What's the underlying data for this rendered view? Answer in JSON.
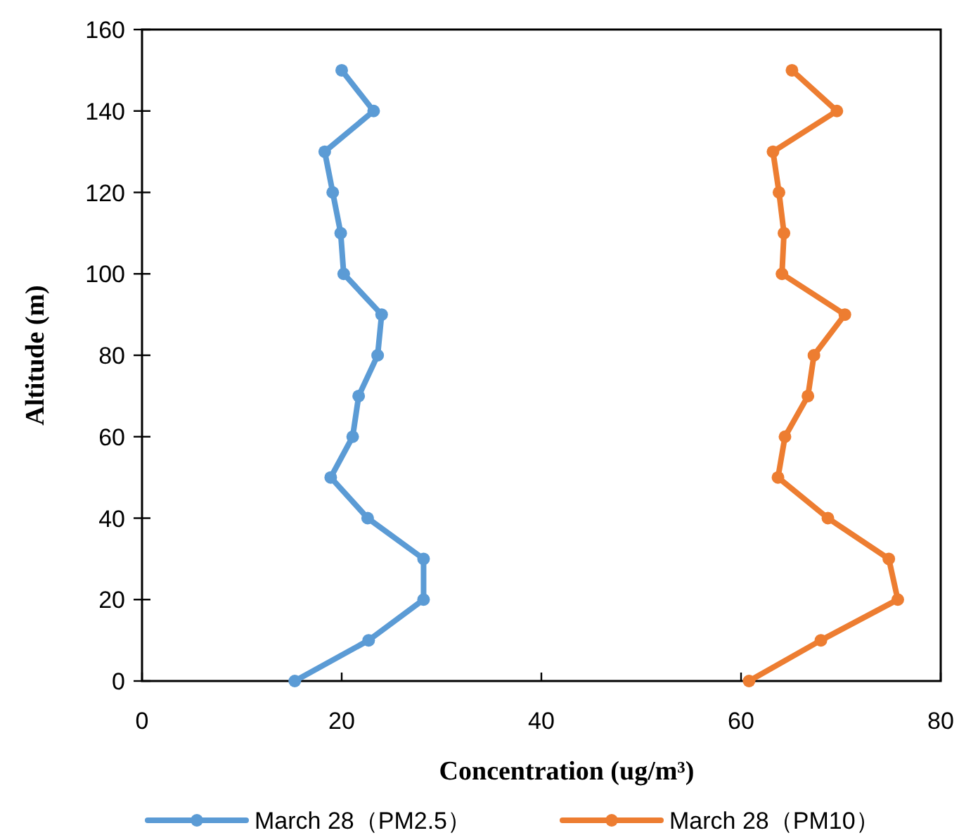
{
  "chart_data": {
    "type": "line",
    "xlabel": "Concentration (ug/m³)",
    "ylabel": "Altitude (m)",
    "xlim": [
      0,
      80
    ],
    "ylim": [
      0,
      160
    ],
    "xticks": [
      0,
      20,
      40,
      60,
      80
    ],
    "yticks": [
      0,
      20,
      40,
      60,
      80,
      100,
      120,
      140,
      160
    ],
    "legend": "bottom",
    "marker": "circle",
    "line_style": "solid",
    "series": [
      {
        "name": "March 28（PM2.5）",
        "color": "#5b9bd5",
        "x": [
          15.3,
          22.7,
          28.2,
          28.2,
          22.6,
          18.9,
          21.1,
          21.7,
          23.6,
          24.0,
          20.2,
          19.9,
          19.1,
          18.3,
          23.2,
          20.0
        ],
        "values": [
          0,
          10,
          20,
          30,
          40,
          50,
          60,
          70,
          80,
          90,
          100,
          110,
          120,
          130,
          140,
          150
        ]
      },
      {
        "name": "March 28（PM10）",
        "color": "#ed7d31",
        "x": [
          60.8,
          68.0,
          75.7,
          74.8,
          68.7,
          63.7,
          64.4,
          66.7,
          67.3,
          70.4,
          64.1,
          64.3,
          63.8,
          63.2,
          69.6,
          65.1
        ],
        "values": [
          0,
          10,
          20,
          30,
          40,
          50,
          60,
          70,
          80,
          90,
          100,
          110,
          120,
          130,
          140,
          150
        ]
      }
    ]
  }
}
